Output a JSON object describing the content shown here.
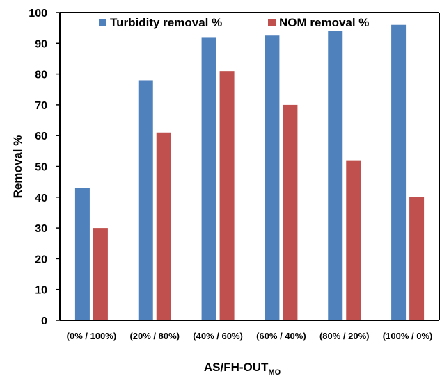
{
  "chart_data": {
    "type": "bar",
    "categories": [
      "(0% / 100%)",
      "(20% / 80%)",
      "(40% / 60%)",
      "(60% / 40%)",
      "(80% / 20%)",
      "(100% / 0%)"
    ],
    "series": [
      {
        "name": "Turbidity removal %",
        "values": [
          43,
          78,
          92,
          92.5,
          94,
          96
        ],
        "color": "#4F81BD"
      },
      {
        "name": "NOM removal %",
        "values": [
          30,
          61,
          81,
          70,
          52,
          40
        ],
        "color": "#C0504D"
      }
    ],
    "ylabel": "Removal %",
    "xlabel": {
      "main": "AS/FH-OUT",
      "subscript": "MO"
    },
    "ylim": [
      0,
      100
    ],
    "yticks": [
      0,
      10,
      20,
      30,
      40,
      50,
      60,
      70,
      80,
      90,
      100
    ],
    "grid": false,
    "legend_position": "top"
  }
}
